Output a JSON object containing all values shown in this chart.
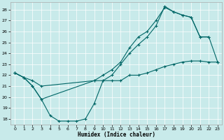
{
  "title": "",
  "xlabel": "Humidex (Indice chaleur)",
  "bg_color": "#c8eaea",
  "grid_color": "#ffffff",
  "line_color": "#006666",
  "xlim": [
    -0.5,
    23.5
  ],
  "ylim": [
    17.5,
    28.7
  ],
  "yticks": [
    18,
    19,
    20,
    21,
    22,
    23,
    24,
    25,
    26,
    27,
    28
  ],
  "xticks": [
    0,
    1,
    2,
    3,
    4,
    5,
    6,
    7,
    8,
    9,
    10,
    11,
    12,
    13,
    14,
    15,
    16,
    17,
    18,
    19,
    20,
    21,
    22,
    23
  ],
  "line1_x": [
    0,
    1,
    2,
    3,
    4,
    5,
    6,
    7,
    8,
    9,
    10,
    11,
    12,
    13,
    14,
    15,
    16,
    17,
    18,
    19,
    20,
    21,
    22,
    23
  ],
  "line1_y": [
    22.2,
    21.8,
    21.0,
    19.8,
    18.3,
    17.8,
    17.8,
    17.8,
    18.0,
    19.4,
    21.5,
    21.5,
    21.5,
    22.0,
    22.0,
    22.2,
    22.5,
    22.8,
    23.0,
    23.2,
    23.3,
    23.3,
    23.2,
    23.2
  ],
  "line2_x": [
    0,
    1,
    2,
    3,
    9,
    10,
    11,
    12,
    13,
    14,
    15,
    16,
    17,
    18,
    19,
    20,
    21,
    22
  ],
  "line2_y": [
    22.2,
    21.8,
    21.0,
    19.8,
    21.5,
    21.5,
    22.0,
    23.0,
    24.0,
    24.8,
    25.5,
    26.5,
    28.3,
    27.8,
    27.5,
    27.3,
    25.5,
    25.5
  ],
  "line3_x": [
    0,
    1,
    2,
    3,
    9,
    10,
    11,
    12,
    13,
    14,
    15,
    16,
    17,
    18,
    19,
    20,
    21,
    22,
    23
  ],
  "line3_y": [
    22.2,
    21.8,
    21.5,
    21.0,
    21.5,
    22.0,
    22.5,
    23.2,
    24.5,
    25.5,
    26.0,
    27.0,
    28.2,
    27.8,
    27.5,
    27.3,
    25.5,
    25.5,
    23.2
  ]
}
